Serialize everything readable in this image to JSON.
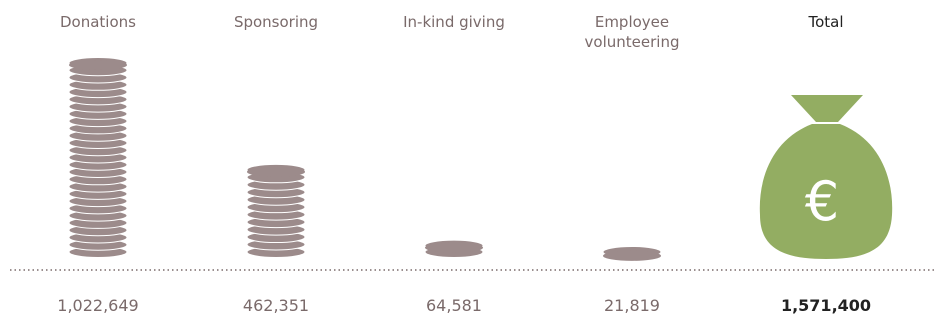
{
  "chart_data": {
    "type": "coin-stack",
    "categories": [
      "Donations",
      "Sponsoring",
      "In-kind giving",
      "Employee volunteering"
    ],
    "values": [
      1022649,
      462351,
      64581,
      21819
    ],
    "value_labels": [
      "1,022,649",
      "462,351",
      "64,581",
      "21,819"
    ],
    "color": "#9c8b8b",
    "total": {
      "label": "Total",
      "value": 1571400,
      "value_label": "1,571,400",
      "symbol": "€",
      "color": "#93ad62"
    }
  }
}
